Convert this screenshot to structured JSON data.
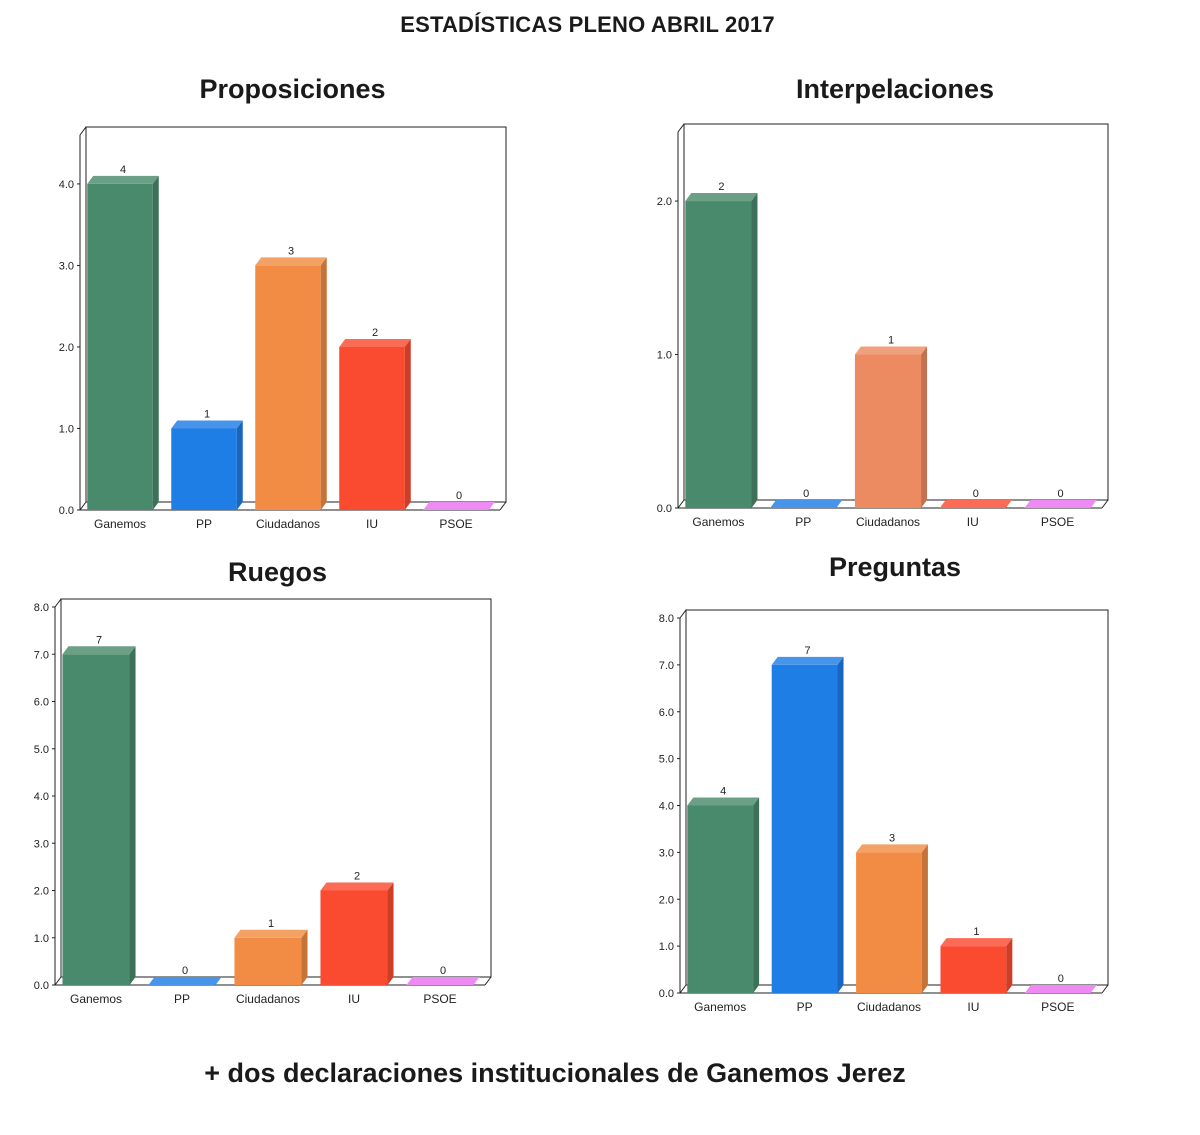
{
  "header": {
    "title": "ESTADÍSTICAS PLENO ABRIL 2017"
  },
  "footer": {
    "note": "+ dos declaraciones institucionales de Ganemos Jerez"
  },
  "colors": {
    "Ganemos": "#4a8a6c",
    "PP": "#1f7de6",
    "Ciudadanos": "#f28c45",
    "Ciudadanos_interpelaciones": "#ec8b62",
    "IU": "#fa4a30",
    "PSOE": "#ea70f0"
  },
  "chart_data": [
    {
      "type": "bar",
      "title": "Proposiciones",
      "categories": [
        "Ganemos",
        "PP",
        "Ciudadanos",
        "IU",
        "PSOE"
      ],
      "values": [
        4,
        1,
        3,
        2,
        0
      ],
      "data_labels": [
        "4",
        "1",
        "3",
        "2",
        "0"
      ],
      "yticks": [
        "0.0",
        "1.0",
        "2.0",
        "3.0",
        "4.0"
      ],
      "ylim": [
        0,
        4.6
      ],
      "xlabel": "",
      "ylabel": ""
    },
    {
      "type": "bar",
      "title": "Interpelaciones",
      "categories": [
        "Ganemos",
        "PP",
        "Ciudadanos",
        "IU",
        "PSOE"
      ],
      "values": [
        2,
        0,
        1,
        0,
        0
      ],
      "data_labels": [
        "2",
        "0",
        "1",
        "0",
        "0"
      ],
      "yticks": [
        "0.0",
        "1.0",
        "2.0"
      ],
      "ylim": [
        0,
        2.45
      ],
      "xlabel": "",
      "ylabel": ""
    },
    {
      "type": "bar",
      "title": "Ruegos",
      "categories": [
        "Ganemos",
        "PP",
        "Ciudadanos",
        "IU",
        "PSOE"
      ],
      "values": [
        7,
        0,
        1,
        2,
        0
      ],
      "data_labels": [
        "7",
        "0",
        "1",
        "2",
        "0"
      ],
      "yticks": [
        "0.0",
        "1.0",
        "2.0",
        "3.0",
        "4.0",
        "5.0",
        "6.0",
        "7.0",
        "8.0"
      ],
      "ylim": [
        0,
        8
      ],
      "xlabel": "",
      "ylabel": ""
    },
    {
      "type": "bar",
      "title": "Preguntas",
      "categories": [
        "Ganemos",
        "PP",
        "Ciudadanos",
        "IU",
        "PSOE"
      ],
      "values": [
        4,
        7,
        3,
        1,
        0
      ],
      "data_labels": [
        "4",
        "7",
        "3",
        "1",
        "0"
      ],
      "yticks": [
        "0.0",
        "1.0",
        "2.0",
        "3.0",
        "4.0",
        "5.0",
        "6.0",
        "7.0",
        "8.0"
      ],
      "ylim": [
        0,
        8
      ],
      "xlabel": "",
      "ylabel": ""
    }
  ]
}
